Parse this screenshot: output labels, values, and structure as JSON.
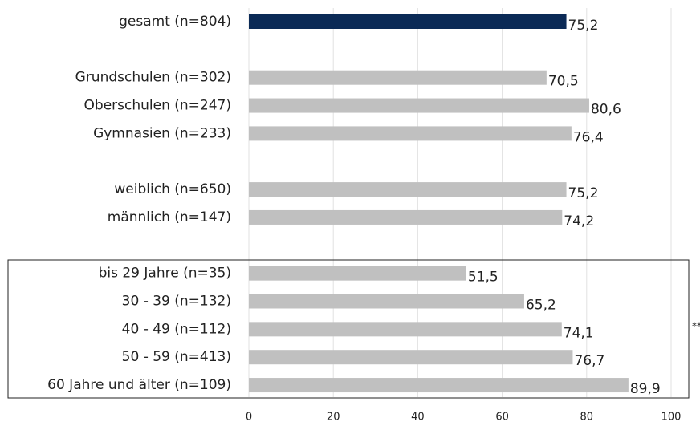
{
  "chart_data": {
    "type": "barh",
    "categories": [
      "gesamt (n=804)",
      null,
      "Grundschulen (n=302)",
      "Oberschulen (n=247)",
      "Gymnasien (n=233)",
      null,
      "weiblich (n=650)",
      "männlich (n=147)",
      null,
      "bis 29 Jahre (n=35)",
      "30 - 39 (n=132)",
      "40 - 49 (n=112)",
      "50 - 59 (n=413)",
      "60 Jahre und älter (n=109)"
    ],
    "values": [
      75.2,
      null,
      70.5,
      80.6,
      76.4,
      null,
      75.2,
      74.2,
      null,
      51.5,
      65.2,
      74.1,
      76.7,
      89.9
    ],
    "value_labels": [
      "75,2",
      null,
      "70,5",
      "80,6",
      "76,4",
      null,
      "75,2",
      "74,2",
      null,
      "51,5",
      "65,2",
      "74,1",
      "76,7",
      "89,9"
    ],
    "colors": [
      "#0b2a56",
      null,
      "#c0c0c0",
      "#c0c0c0",
      "#c0c0c0",
      null,
      "#c0c0c0",
      "#c0c0c0",
      null,
      "#c0c0c0",
      "#c0c0c0",
      "#c0c0c0",
      "#c0c0c0",
      "#c0c0c0"
    ],
    "xlim": [
      0,
      100
    ],
    "xticks": [
      0,
      20,
      40,
      60,
      80,
      100
    ],
    "grid": true,
    "annotation": "***"
  }
}
